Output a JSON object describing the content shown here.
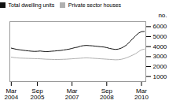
{
  "chart_data": {
    "type": "line",
    "categories": [
      "Mar\n2004",
      null,
      null,
      null,
      null,
      null,
      null,
      null,
      null,
      "Sep\n2005",
      null,
      null,
      null,
      null,
      null,
      null,
      null,
      null,
      null,
      null,
      null,
      "Mar\n2007",
      null,
      null,
      null,
      null,
      null,
      null,
      null,
      null,
      null,
      null,
      null,
      "Sep\n2008",
      null,
      null,
      null,
      null,
      null,
      null,
      null,
      null,
      null,
      null,
      null,
      "Mar\n2010",
      null
    ],
    "series": [
      {
        "name": "Total dwelling units",
        "color": "#111111",
        "values": [
          3850,
          3780,
          3720,
          3680,
          3640,
          3600,
          3570,
          3540,
          3520,
          3530,
          3560,
          3520,
          3500,
          3510,
          3540,
          3560,
          3590,
          3610,
          3660,
          3700,
          3750,
          3820,
          3900,
          3950,
          4050,
          4100,
          4120,
          4100,
          4080,
          4050,
          4020,
          3980,
          3960,
          3900,
          3820,
          3760,
          3720,
          3750,
          3850,
          4000,
          4200,
          4500,
          4800,
          5100,
          5350,
          5500,
          5520
        ]
      },
      {
        "name": "Private sector houses",
        "color": "#b0b0b0",
        "values": [
          2950,
          2900,
          2870,
          2850,
          2840,
          2830,
          2820,
          2810,
          2800,
          2790,
          2780,
          2760,
          2740,
          2730,
          2720,
          2710,
          2710,
          2720,
          2730,
          2740,
          2760,
          2780,
          2800,
          2820,
          2840,
          2860,
          2870,
          2860,
          2840,
          2820,
          2800,
          2780,
          2760,
          2740,
          2720,
          2700,
          2680,
          2690,
          2730,
          2800,
          2900,
          3020,
          3150,
          3300,
          3500,
          3680,
          3750
        ]
      }
    ],
    "ylabel": "no.",
    "ylim": [
      500,
      6500
    ],
    "yticks": [
      1000,
      2000,
      3000,
      4000,
      5000,
      6000
    ],
    "grid": false,
    "legend": "upper left"
  }
}
